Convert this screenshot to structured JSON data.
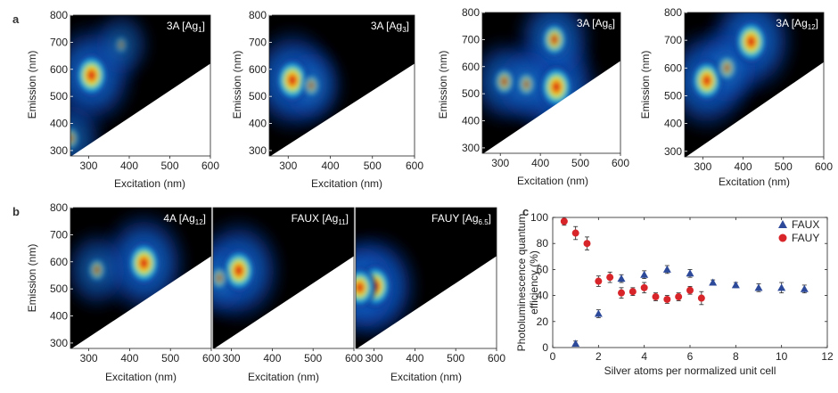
{
  "panel_labels": {
    "a": "a",
    "b": "b",
    "c": "c"
  },
  "axes": {
    "excitation_label": "Excitation (nm)",
    "emission_label": "Emission (nm)",
    "x_ticks_a": [
      "300",
      "400",
      "500",
      "600"
    ],
    "x_ticks_b": [
      "300",
      "400",
      "500",
      "600"
    ],
    "y_ticks": [
      "300",
      "400",
      "500",
      "600",
      "700",
      "800"
    ]
  },
  "maps": [
    {
      "host": "3A",
      "cluster": "Ag",
      "sub": "1"
    },
    {
      "host": "3A",
      "cluster": "Ag",
      "sub": "3"
    },
    {
      "host": "3A",
      "cluster": "Ag",
      "sub": "6"
    },
    {
      "host": "3A",
      "cluster": "Ag",
      "sub": "12"
    },
    {
      "host": "4A",
      "cluster": "Ag",
      "sub": "12"
    },
    {
      "host": "FAUX",
      "cluster": "Ag",
      "sub": "11"
    },
    {
      "host": "FAUY",
      "cluster": "Ag",
      "sub": "6.5"
    }
  ],
  "colors": {
    "background": "#000000",
    "low": "#0a2a8f",
    "mid": "#16b3e0",
    "high": "#e8f02a",
    "peak": "#d8141a",
    "fau_x": "#2d4a9a",
    "fau_y": "#d8252a"
  },
  "chart_data": [
    {
      "type": "heatmap",
      "title": "3A [Ag1]",
      "xlabel": "Excitation (nm)",
      "ylabel": "Emission (nm)",
      "xlim": [
        255,
        600
      ],
      "ylim": [
        280,
        800
      ],
      "peaks": [
        {
          "x": 307,
          "y": 578,
          "intensity": 1.0
        },
        {
          "x": 255,
          "y": 345,
          "intensity": 0.35
        },
        {
          "x": 380,
          "y": 690,
          "intensity": 0.12
        }
      ]
    },
    {
      "type": "heatmap",
      "title": "3A [Ag3]",
      "xlabel": "Excitation (nm)",
      "ylabel": "Emission (nm)",
      "xlim": [
        255,
        600
      ],
      "ylim": [
        280,
        800
      ],
      "peaks": [
        {
          "x": 310,
          "y": 560,
          "intensity": 1.0
        },
        {
          "x": 355,
          "y": 540,
          "intensity": 0.35
        }
      ]
    },
    {
      "type": "heatmap",
      "title": "3A [Ag6]",
      "xlabel": "Excitation (nm)",
      "ylabel": "Emission (nm)",
      "xlim": [
        255,
        600
      ],
      "ylim": [
        280,
        800
      ],
      "peaks": [
        {
          "x": 440,
          "y": 525,
          "intensity": 1.0
        },
        {
          "x": 435,
          "y": 700,
          "intensity": 0.7
        },
        {
          "x": 310,
          "y": 545,
          "intensity": 0.5
        },
        {
          "x": 365,
          "y": 535,
          "intensity": 0.4
        }
      ]
    },
    {
      "type": "heatmap",
      "title": "3A [Ag12]",
      "xlabel": "Excitation (nm)",
      "ylabel": "Emission (nm)",
      "xlim": [
        255,
        600
      ],
      "ylim": [
        280,
        800
      ],
      "peaks": [
        {
          "x": 420,
          "y": 695,
          "intensity": 1.0
        },
        {
          "x": 310,
          "y": 555,
          "intensity": 0.95
        },
        {
          "x": 360,
          "y": 600,
          "intensity": 0.45
        }
      ]
    },
    {
      "type": "heatmap",
      "title": "4A [Ag12]",
      "xlabel": "Excitation (nm)",
      "ylabel": "Emission (nm)",
      "xlim": [
        255,
        600
      ],
      "ylim": [
        280,
        800
      ],
      "peaks": [
        {
          "x": 435,
          "y": 595,
          "intensity": 1.0
        },
        {
          "x": 320,
          "y": 570,
          "intensity": 0.35
        }
      ]
    },
    {
      "type": "heatmap",
      "title": "FAUX [Ag11]",
      "xlabel": "Excitation (nm)",
      "ylabel": "Emission (nm)",
      "xlim": [
        255,
        600
      ],
      "ylim": [
        280,
        800
      ],
      "peaks": [
        {
          "x": 318,
          "y": 568,
          "intensity": 1.0
        },
        {
          "x": 270,
          "y": 540,
          "intensity": 0.35
        }
      ]
    },
    {
      "type": "heatmap",
      "title": "FAUY [Ag6.5]",
      "xlabel": "Excitation (nm)",
      "ylabel": "Emission (nm)",
      "xlim": [
        255,
        600
      ],
      "ylim": [
        280,
        800
      ],
      "peaks": [
        {
          "x": 302,
          "y": 510,
          "intensity": 1.0
        },
        {
          "x": 265,
          "y": 505,
          "intensity": 0.9
        }
      ]
    },
    {
      "type": "scatter",
      "title": "",
      "xlabel": "Silver atoms per normalized unit cell",
      "ylabel_line1": "Photoluminescence quantum",
      "ylabel_line2": "efficiency (%)",
      "xlim": [
        0,
        12
      ],
      "ylim": [
        0,
        100
      ],
      "x_ticks": [
        "0",
        "2",
        "4",
        "6",
        "8",
        "10",
        "12"
      ],
      "y_ticks": [
        "0",
        "20",
        "40",
        "60",
        "80",
        "100"
      ],
      "legend_position": "top-right",
      "series": [
        {
          "name": "FAUX",
          "marker": "triangle",
          "x": [
            1,
            2,
            3,
            4,
            5,
            6,
            7,
            8,
            9,
            10,
            11
          ],
          "y": [
            3,
            26,
            53,
            56,
            60,
            57,
            50,
            48,
            46,
            46,
            45
          ],
          "err": [
            2,
            3,
            3,
            3,
            3,
            3,
            2,
            2,
            3,
            4,
            3
          ]
        },
        {
          "name": "FAUY",
          "marker": "circle",
          "x": [
            0.5,
            1,
            1.5,
            2,
            2.5,
            3,
            3.5,
            4,
            4.5,
            5,
            5.5,
            6,
            6.5
          ],
          "y": [
            97,
            88,
            80,
            51,
            54,
            42,
            43,
            46,
            39,
            37,
            39,
            44,
            38
          ],
          "err": [
            3,
            5,
            5,
            4,
            4,
            4,
            3,
            4,
            3,
            3,
            3,
            3,
            5
          ]
        }
      ]
    }
  ]
}
